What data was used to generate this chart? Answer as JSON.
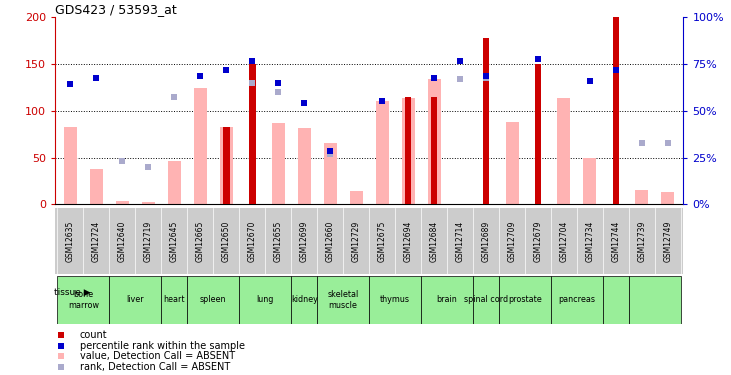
{
  "title": "GDS423 / 53593_at",
  "gsm_labels": [
    "GSM12635",
    "GSM12724",
    "GSM12640",
    "GSM12719",
    "GSM12645",
    "GSM12665",
    "GSM12650",
    "GSM12670",
    "GSM12655",
    "GSM12699",
    "GSM12660",
    "GSM12729",
    "GSM12675",
    "GSM12694",
    "GSM12684",
    "GSM12714",
    "GSM12689",
    "GSM12709",
    "GSM12679",
    "GSM12704",
    "GSM12734",
    "GSM12744",
    "GSM12739",
    "GSM12749"
  ],
  "count_values": [
    null,
    null,
    null,
    null,
    null,
    null,
    83,
    150,
    null,
    null,
    null,
    null,
    null,
    115,
    115,
    null,
    178,
    null,
    150,
    null,
    null,
    200,
    null,
    null
  ],
  "rank_values": [
    128,
    135,
    null,
    null,
    null,
    137,
    143,
    153,
    130,
    108,
    57,
    null,
    110,
    null,
    135,
    153,
    137,
    null,
    155,
    null,
    132,
    143,
    null,
    null
  ],
  "absent_value_values": [
    83,
    38,
    4,
    3,
    46,
    124,
    83,
    null,
    87,
    82,
    65,
    14,
    110,
    114,
    134,
    null,
    null,
    88,
    null,
    113,
    50,
    null,
    15,
    13
  ],
  "absent_rank_values": [
    null,
    null,
    46,
    40,
    115,
    null,
    null,
    130,
    120,
    null,
    54,
    null,
    null,
    null,
    null,
    134,
    135,
    null,
    null,
    null,
    null,
    null,
    66,
    66
  ],
  "tissue_defs": [
    {
      "label": "bone\nmarrow",
      "start": 0,
      "end": 2
    },
    {
      "label": "liver",
      "start": 2,
      "end": 4
    },
    {
      "label": "heart",
      "start": 4,
      "end": 5
    },
    {
      "label": "spleen",
      "start": 5,
      "end": 7
    },
    {
      "label": "lung",
      "start": 7,
      "end": 9
    },
    {
      "label": "kidney",
      "start": 9,
      "end": 10
    },
    {
      "label": "skeletal\nmuscle",
      "start": 10,
      "end": 12
    },
    {
      "label": "thymus",
      "start": 12,
      "end": 14
    },
    {
      "label": "brain",
      "start": 14,
      "end": 16
    },
    {
      "label": "spinal cord",
      "start": 16,
      "end": 17
    },
    {
      "label": "prostate",
      "start": 17,
      "end": 19
    },
    {
      "label": "pancreas",
      "start": 19,
      "end": 21
    },
    {
      "label": "",
      "start": 21,
      "end": 22
    },
    {
      "label": "",
      "start": 22,
      "end": 24
    }
  ],
  "color_count": "#cc0000",
  "color_rank": "#0000cc",
  "color_absent_value": "#ffb3b3",
  "color_absent_rank": "#aaaacc",
  "color_gsm_bg": "#cccccc",
  "color_tissue_bg": "#99ee99",
  "left_yticks": [
    0,
    50,
    100,
    150,
    200
  ],
  "right_yticks": [
    0,
    25,
    50,
    75,
    100
  ],
  "right_ytick_labels": [
    "0%",
    "25%",
    "50%",
    "75%",
    "100%"
  ],
  "legend": [
    {
      "color": "#cc0000",
      "label": "count"
    },
    {
      "color": "#0000cc",
      "label": "percentile rank within the sample"
    },
    {
      "color": "#ffb3b3",
      "label": "value, Detection Call = ABSENT"
    },
    {
      "color": "#aaaacc",
      "label": "rank, Detection Call = ABSENT"
    }
  ]
}
